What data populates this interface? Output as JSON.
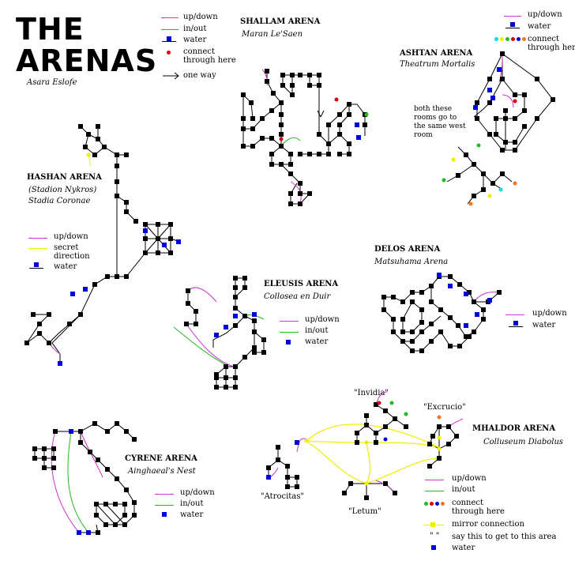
{
  "title_lines": [
    "THE",
    "ARENAS"
  ],
  "author": "Asara Eslofe",
  "colors": {
    "updown": "#cc33cc",
    "inout": "#22bb22",
    "water": "#0000dd",
    "secret": "#eeee00",
    "mirror": "#eeee00",
    "room": "#000000"
  },
  "main_legend": {
    "updown": "up/down",
    "inout": "in/out",
    "water": "water",
    "connect": "connect",
    "connect2": "through here",
    "oneway": "one way"
  },
  "shallam": {
    "name": "SHALLAM ARENA",
    "subtitle": "Maran Le'Saen"
  },
  "ashtan": {
    "name": "ASHTAN ARENA",
    "subtitle": "Theatrum Mortalis",
    "legend": {
      "updown": "up/down",
      "water": "water",
      "connect": "connect",
      "connect2": "through here"
    },
    "note": [
      "both these",
      "rooms go to",
      "the same west",
      "room"
    ]
  },
  "hashan": {
    "name": "HASHAN ARENA",
    "sub1": "(Stadion Nykros)",
    "sub2": "Stadia Coronae",
    "legend": {
      "updown": "up/down",
      "secret": "secret",
      "secret2": "direction",
      "water": "water"
    }
  },
  "eleusis": {
    "name": "ELEUSIS ARENA",
    "subtitle": "Collosea en Duir",
    "legend": {
      "updown": "up/down",
      "inout": "in/out",
      "water": "water"
    }
  },
  "delos": {
    "name": "DELOS ARENA",
    "subtitle": "Matsuhama Arena",
    "legend": {
      "updown": "up/down",
      "water": "water"
    }
  },
  "cyrene": {
    "name": "CYRENE ARENA",
    "subtitle": "Ainghaeal's Nest",
    "legend": {
      "updown": "up/down",
      "inout": "in/out",
      "water": "water"
    }
  },
  "mhaldor": {
    "name": "MHALDOR ARENA",
    "subtitle": "Colluseum Diabolus",
    "areas": {
      "invidia": "\"Invidia\"",
      "excrucio": "\"Excrucio\"",
      "atrocitas": "\"Atrocitas\"",
      "letum": "\"Letum\""
    },
    "legend": {
      "updown": "up/down",
      "inout": "in/out",
      "connect": "connect",
      "connect2": "through here",
      "mirror": "mirror connection",
      "say": "say this to get to this area",
      "water": "water"
    }
  }
}
